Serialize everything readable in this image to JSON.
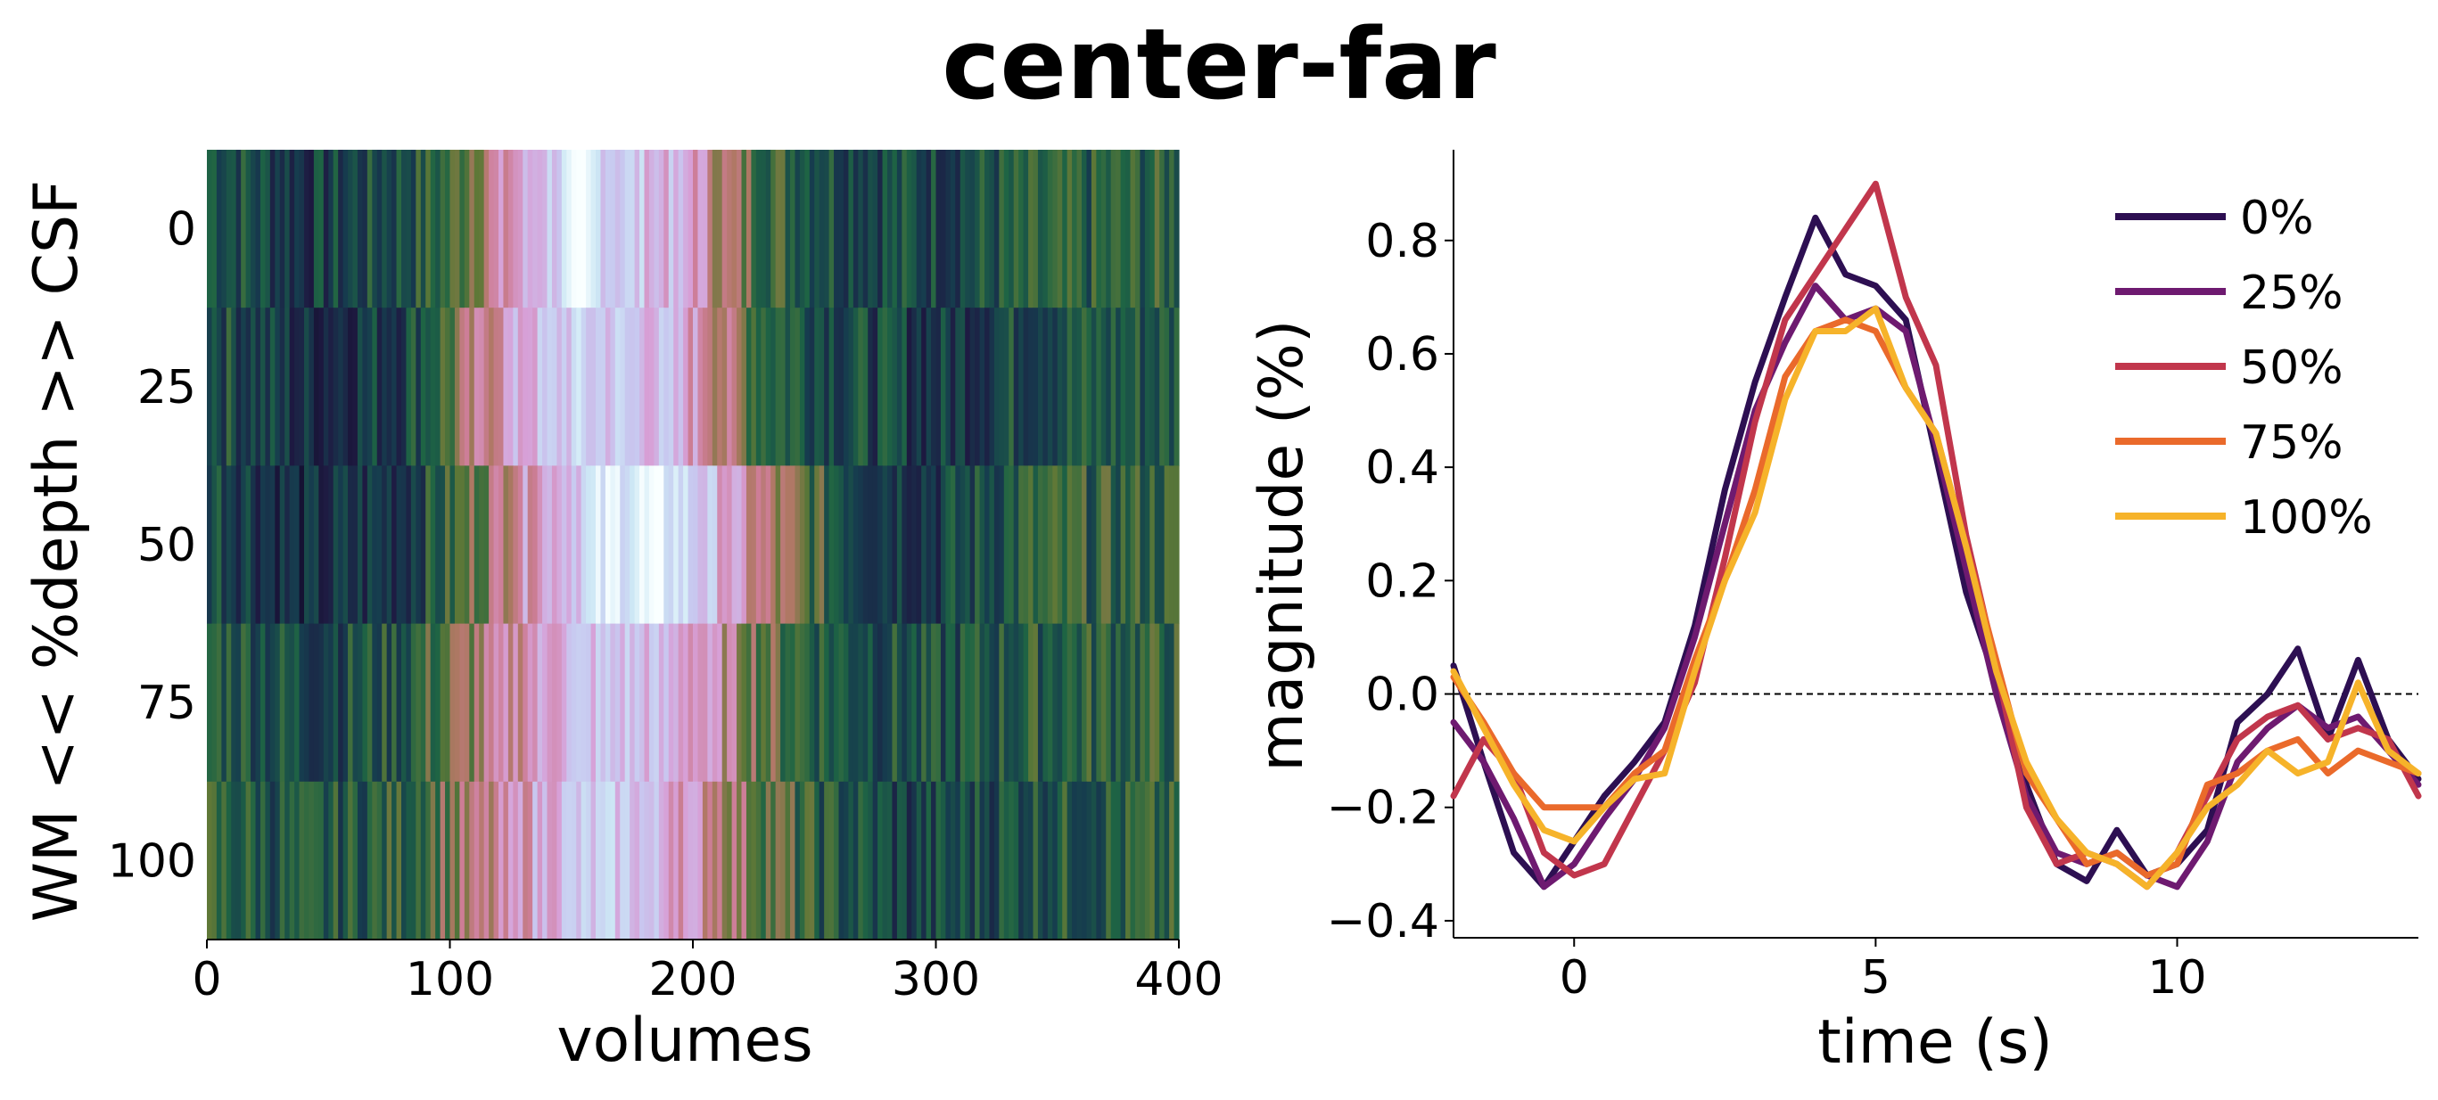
{
  "figure": {
    "title": "center-far"
  },
  "chart_data": [
    {
      "type": "heatmap",
      "title": "",
      "xlabel": "volumes",
      "ylabel": "WM << %depth >> CSF",
      "xlim": [
        0,
        400
      ],
      "x_ticks": [
        0,
        100,
        200,
        300,
        400
      ],
      "rows": [
        "0",
        "25",
        "50",
        "75",
        "100"
      ],
      "n_columns": 400,
      "colormap": "cubehelix-like (dark navy → green → pink → lavender → white)",
      "row_profiles": [
        {
          "row": "0",
          "anchors": [
            [
              0,
              0.32
            ],
            [
              40,
              0.2
            ],
            [
              80,
              0.28
            ],
            [
              100,
              0.36
            ],
            [
              110,
              0.5
            ],
            [
              125,
              0.62
            ],
            [
              140,
              0.8
            ],
            [
              155,
              0.92
            ],
            [
              165,
              0.85
            ],
            [
              185,
              0.75
            ],
            [
              200,
              0.68
            ],
            [
              215,
              0.48
            ],
            [
              230,
              0.38
            ],
            [
              260,
              0.28
            ],
            [
              300,
              0.25
            ],
            [
              340,
              0.3
            ],
            [
              400,
              0.33
            ]
          ]
        },
        {
          "row": "25",
          "anchors": [
            [
              0,
              0.3
            ],
            [
              40,
              0.17
            ],
            [
              80,
              0.24
            ],
            [
              100,
              0.4
            ],
            [
              110,
              0.52
            ],
            [
              125,
              0.68
            ],
            [
              150,
              0.82
            ],
            [
              170,
              0.8
            ],
            [
              190,
              0.74
            ],
            [
              205,
              0.62
            ],
            [
              215,
              0.5
            ],
            [
              230,
              0.36
            ],
            [
              260,
              0.27
            ],
            [
              300,
              0.2
            ],
            [
              340,
              0.28
            ],
            [
              400,
              0.3
            ]
          ]
        },
        {
          "row": "50",
          "anchors": [
            [
              0,
              0.3
            ],
            [
              40,
              0.15
            ],
            [
              80,
              0.22
            ],
            [
              100,
              0.34
            ],
            [
              115,
              0.48
            ],
            [
              125,
              0.6
            ],
            [
              150,
              0.8
            ],
            [
              170,
              0.94
            ],
            [
              190,
              0.92
            ],
            [
              210,
              0.74
            ],
            [
              225,
              0.55
            ],
            [
              245,
              0.4
            ],
            [
              270,
              0.26
            ],
            [
              300,
              0.22
            ],
            [
              340,
              0.33
            ],
            [
              400,
              0.34
            ]
          ]
        },
        {
          "row": "75",
          "anchors": [
            [
              0,
              0.34
            ],
            [
              40,
              0.25
            ],
            [
              80,
              0.3
            ],
            [
              100,
              0.42
            ],
            [
              115,
              0.52
            ],
            [
              130,
              0.62
            ],
            [
              150,
              0.76
            ],
            [
              175,
              0.78
            ],
            [
              200,
              0.68
            ],
            [
              215,
              0.55
            ],
            [
              230,
              0.42
            ],
            [
              260,
              0.3
            ],
            [
              300,
              0.26
            ],
            [
              340,
              0.32
            ],
            [
              400,
              0.34
            ]
          ]
        },
        {
          "row": "100",
          "anchors": [
            [
              0,
              0.34
            ],
            [
              40,
              0.27
            ],
            [
              80,
              0.34
            ],
            [
              100,
              0.45
            ],
            [
              120,
              0.55
            ],
            [
              135,
              0.7
            ],
            [
              150,
              0.78
            ],
            [
              175,
              0.8
            ],
            [
              195,
              0.68
            ],
            [
              210,
              0.56
            ],
            [
              225,
              0.46
            ],
            [
              250,
              0.32
            ],
            [
              290,
              0.22
            ],
            [
              340,
              0.3
            ],
            [
              400,
              0.32
            ]
          ]
        }
      ]
    },
    {
      "type": "line",
      "title": "",
      "xlabel": "time (s)",
      "ylabel": "magnitude (%)",
      "xlim": [
        -2,
        14
      ],
      "ylim": [
        -0.43,
        0.96
      ],
      "x_ticks": [
        0,
        5,
        10
      ],
      "y_ticks": [
        "0.8",
        "0.6",
        "0.4",
        "0.2",
        "0.0",
        "−0.2",
        "−0.4"
      ],
      "y_tick_values": [
        0.8,
        0.6,
        0.4,
        0.2,
        0.0,
        -0.2,
        -0.4
      ],
      "reference_line": {
        "y": 0.0,
        "style": "dashed"
      },
      "legend": {
        "placement": "top-right"
      },
      "series": [
        {
          "name": "0%",
          "color": "#2d0f52",
          "x": [
            -2,
            -1.5,
            -1,
            -0.5,
            0,
            0.5,
            1,
            1.5,
            2,
            2.5,
            3,
            3.5,
            4,
            4.5,
            5,
            5.5,
            6,
            6.5,
            7,
            7.5,
            8,
            8.5,
            9,
            9.5,
            10,
            10.5,
            11,
            11.5,
            12,
            12.5,
            13,
            13.5,
            14
          ],
          "y": [
            0.05,
            -0.12,
            -0.28,
            -0.34,
            -0.26,
            -0.18,
            -0.12,
            -0.05,
            0.12,
            0.36,
            0.55,
            0.7,
            0.84,
            0.74,
            0.72,
            0.66,
            0.42,
            0.18,
            0.02,
            -0.16,
            -0.3,
            -0.33,
            -0.24,
            -0.32,
            -0.3,
            -0.24,
            -0.05,
            0.0,
            0.08,
            -0.08,
            0.06,
            -0.08,
            -0.15
          ]
        },
        {
          "name": "25%",
          "color": "#6e1a70",
          "x": [
            -2,
            -1.5,
            -1,
            -0.5,
            0,
            0.5,
            1,
            1.5,
            2,
            2.5,
            3,
            3.5,
            4,
            4.5,
            5,
            5.5,
            6,
            6.5,
            7,
            7.5,
            8,
            8.5,
            9,
            9.5,
            10,
            10.5,
            11,
            11.5,
            12,
            12.5,
            13,
            13.5,
            14
          ],
          "y": [
            -0.05,
            -0.12,
            -0.22,
            -0.34,
            -0.3,
            -0.22,
            -0.15,
            -0.06,
            0.1,
            0.3,
            0.5,
            0.62,
            0.72,
            0.66,
            0.68,
            0.64,
            0.44,
            0.22,
            0.0,
            -0.18,
            -0.28,
            -0.3,
            -0.28,
            -0.32,
            -0.34,
            -0.26,
            -0.12,
            -0.06,
            -0.02,
            -0.06,
            -0.04,
            -0.1,
            -0.16
          ]
        },
        {
          "name": "50%",
          "color": "#c1364c",
          "x": [
            -2,
            -1.5,
            -1,
            -0.5,
            0,
            0.5,
            1,
            1.5,
            2,
            2.5,
            3,
            3.5,
            4,
            4.5,
            5,
            5.5,
            6,
            6.5,
            7,
            7.5,
            8,
            8.5,
            9,
            9.5,
            10,
            10.5,
            11,
            11.5,
            12,
            12.5,
            13,
            13.5,
            14
          ],
          "y": [
            -0.18,
            -0.08,
            -0.14,
            -0.28,
            -0.32,
            -0.3,
            -0.2,
            -0.1,
            0.02,
            0.24,
            0.48,
            0.66,
            0.74,
            0.82,
            0.9,
            0.7,
            0.58,
            0.28,
            0.05,
            -0.2,
            -0.3,
            -0.28,
            -0.3,
            -0.34,
            -0.28,
            -0.18,
            -0.08,
            -0.04,
            -0.02,
            -0.08,
            -0.06,
            -0.08,
            -0.18
          ]
        },
        {
          "name": "75%",
          "color": "#ea6a2b",
          "x": [
            -2,
            -1.5,
            -1,
            -0.5,
            0,
            0.5,
            1,
            1.5,
            2,
            2.5,
            3,
            3.5,
            4,
            4.5,
            5,
            5.5,
            6,
            6.5,
            7,
            7.5,
            8,
            8.5,
            9,
            9.5,
            10,
            10.5,
            11,
            11.5,
            12,
            12.5,
            13,
            13.5,
            14
          ],
          "y": [
            0.03,
            -0.05,
            -0.14,
            -0.2,
            -0.2,
            -0.2,
            -0.14,
            -0.1,
            0.06,
            0.2,
            0.36,
            0.56,
            0.64,
            0.66,
            0.64,
            0.54,
            0.46,
            0.26,
            0.06,
            -0.14,
            -0.22,
            -0.3,
            -0.28,
            -0.32,
            -0.3,
            -0.16,
            -0.14,
            -0.1,
            -0.08,
            -0.14,
            -0.1,
            -0.12,
            -0.14
          ]
        },
        {
          "name": "100%",
          "color": "#f6b32a",
          "x": [
            -2,
            -1.5,
            -1,
            -0.5,
            0,
            0.5,
            1,
            1.5,
            2,
            2.5,
            3,
            3.5,
            4,
            4.5,
            5,
            5.5,
            6,
            6.5,
            7,
            7.5,
            8,
            8.5,
            9,
            9.5,
            10,
            10.5,
            11,
            11.5,
            12,
            12.5,
            13,
            13.5,
            14
          ],
          "y": [
            0.04,
            -0.06,
            -0.16,
            -0.24,
            -0.26,
            -0.2,
            -0.15,
            -0.14,
            0.04,
            0.2,
            0.32,
            0.52,
            0.64,
            0.64,
            0.68,
            0.54,
            0.46,
            0.26,
            0.04,
            -0.12,
            -0.22,
            -0.28,
            -0.3,
            -0.34,
            -0.28,
            -0.2,
            -0.16,
            -0.1,
            -0.14,
            -0.12,
            0.02,
            -0.1,
            -0.14
          ]
        }
      ]
    }
  ]
}
